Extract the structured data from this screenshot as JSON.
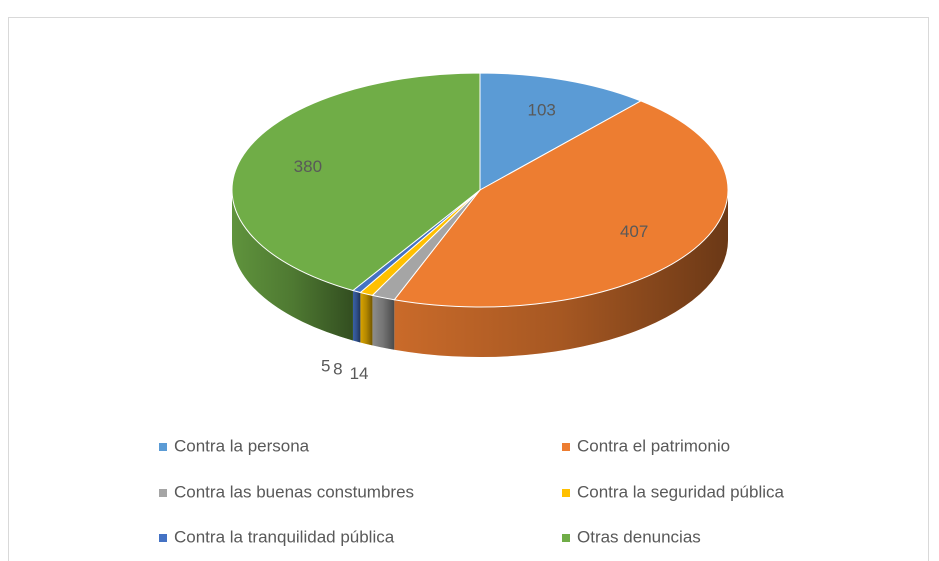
{
  "chart_data": {
    "type": "pie3d",
    "categories": [
      "Contra la persona",
      "Contra el patrimonio",
      "Contra las buenas constumbres",
      "Contra la seguridad pública",
      "Contra la tranquilidad pública",
      "Otras denuncias"
    ],
    "values": [
      103,
      407,
      14,
      8,
      5,
      380
    ],
    "colors": [
      "#5b9bd5",
      "#ed7d31",
      "#a5a5a5",
      "#ffc000",
      "#4472c4",
      "#70ad47"
    ],
    "legend": "bottom"
  }
}
